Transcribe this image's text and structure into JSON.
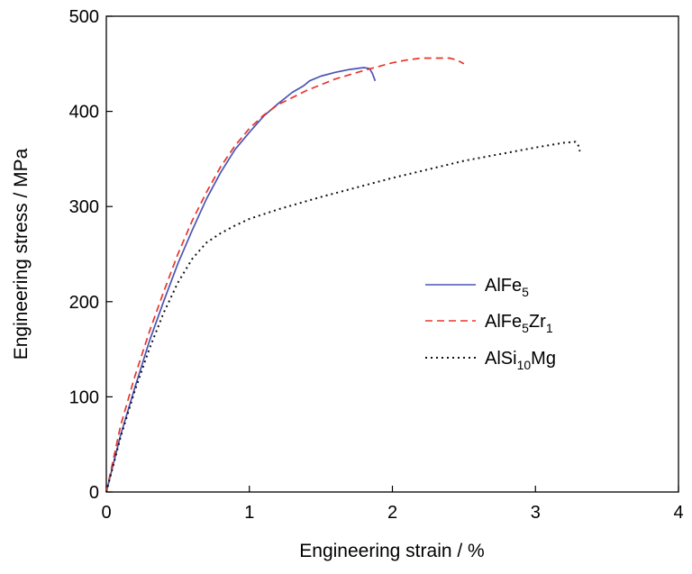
{
  "chart_data": {
    "type": "line",
    "xlabel": "Engineering strain / %",
    "ylabel": "Engineering stress / MPa",
    "xlim": [
      0,
      4
    ],
    "ylim": [
      0,
      500
    ],
    "x_ticks": [
      "0",
      "1",
      "2",
      "3",
      "4"
    ],
    "y_ticks": [
      "0",
      "100",
      "200",
      "300",
      "400",
      "500"
    ],
    "grid": false,
    "legend_position": "right-middle",
    "series": [
      {
        "name_main": "AlFe",
        "name_sub": "5",
        "name_main2": "",
        "name_sub2": "",
        "color": "#4a55b5",
        "dash": "solid",
        "x": [
          0,
          0.1,
          0.2,
          0.3,
          0.4,
          0.5,
          0.6,
          0.7,
          0.8,
          0.9,
          1.0,
          1.1,
          1.2,
          1.3,
          1.38,
          1.42,
          1.5,
          1.6,
          1.7,
          1.8,
          1.84,
          1.86,
          1.88
        ],
        "y": [
          0,
          60,
          110,
          158,
          200,
          240,
          275,
          308,
          336,
          360,
          378,
          395,
          408,
          420,
          427,
          432,
          437,
          441,
          444,
          446,
          445,
          440,
          432
        ]
      },
      {
        "name_main": "AlFe",
        "name_sub": "5",
        "name_main2": "Zr",
        "name_sub2": "1",
        "color": "#e8352a",
        "dash": "dashed",
        "x": [
          0,
          0.1,
          0.2,
          0.3,
          0.4,
          0.5,
          0.6,
          0.7,
          0.8,
          0.9,
          1.0,
          1.1,
          1.2,
          1.4,
          1.6,
          1.8,
          2.0,
          2.1,
          2.2,
          2.3,
          2.4,
          2.45,
          2.5
        ],
        "y": [
          0,
          70,
          122,
          168,
          210,
          250,
          285,
          315,
          342,
          364,
          382,
          396,
          407,
          422,
          434,
          443,
          451,
          454,
          456,
          456,
          456,
          454,
          450
        ]
      },
      {
        "name_main": "AlSi",
        "name_sub": "10",
        "name_main2": "Mg",
        "name_sub2": "",
        "color": "#111111",
        "dash": "dotted",
        "x": [
          0,
          0.1,
          0.2,
          0.3,
          0.4,
          0.5,
          0.6,
          0.7,
          0.8,
          0.9,
          1.0,
          1.2,
          1.5,
          2.0,
          2.5,
          3.0,
          3.2,
          3.28,
          3.3,
          3.31
        ],
        "y": [
          0,
          58,
          107,
          150,
          188,
          220,
          245,
          262,
          272,
          280,
          287,
          297,
          310,
          330,
          348,
          362,
          367,
          368,
          364,
          358
        ]
      }
    ]
  }
}
